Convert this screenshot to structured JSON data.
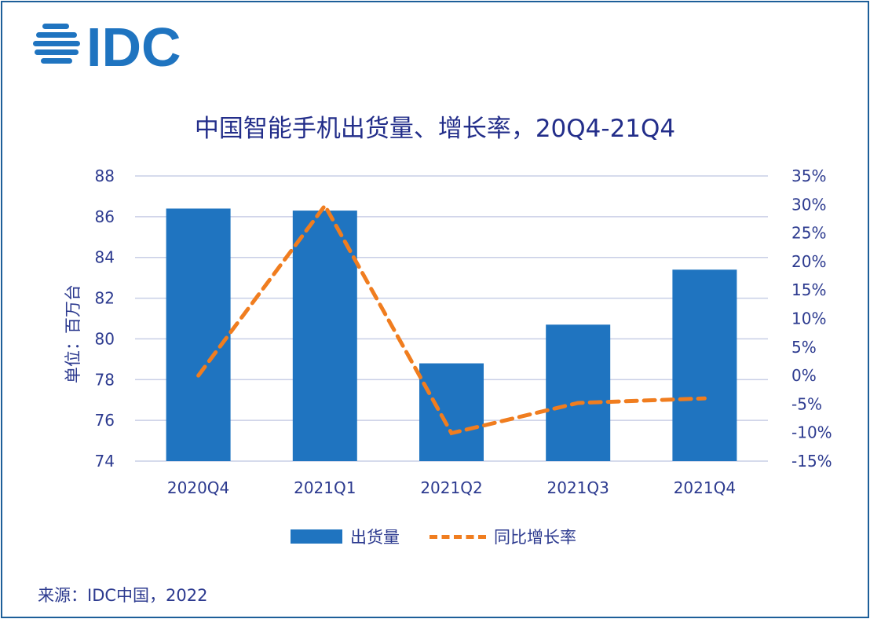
{
  "logo_text": "IDC",
  "chart_data": {
    "type": "bar+line",
    "title": "中国智能手机出货量、增长率，20Q4-21Q4",
    "ylabel": "单位：百万台",
    "categories": [
      "2020Q4",
      "2021Q1",
      "2021Q2",
      "2021Q3",
      "2021Q4"
    ],
    "ylim": [
      74,
      88
    ],
    "yticks": [
      "74",
      "76",
      "78",
      "80",
      "82",
      "84",
      "86",
      "88"
    ],
    "y2lim": [
      -15,
      35
    ],
    "y2ticks": [
      "-15%",
      "-10%",
      "-5%",
      "0%",
      "5%",
      "10%",
      "15%",
      "20%",
      "25%",
      "30%",
      "35%"
    ],
    "grid": true,
    "legend_position": "bottom",
    "series": [
      {
        "name": "出货量",
        "type": "bar",
        "axis": "left",
        "color": "#1f74c0",
        "values": [
          86.4,
          86.3,
          78.8,
          80.7,
          83.4
        ]
      },
      {
        "name": "同比增长率",
        "type": "line",
        "style": "dashed",
        "axis": "right",
        "color": "#f07d1f",
        "values": [
          0.0,
          29.8,
          -10.1,
          -4.8,
          -4.0
        ]
      }
    ]
  },
  "source": "来源：IDC中国，2022"
}
